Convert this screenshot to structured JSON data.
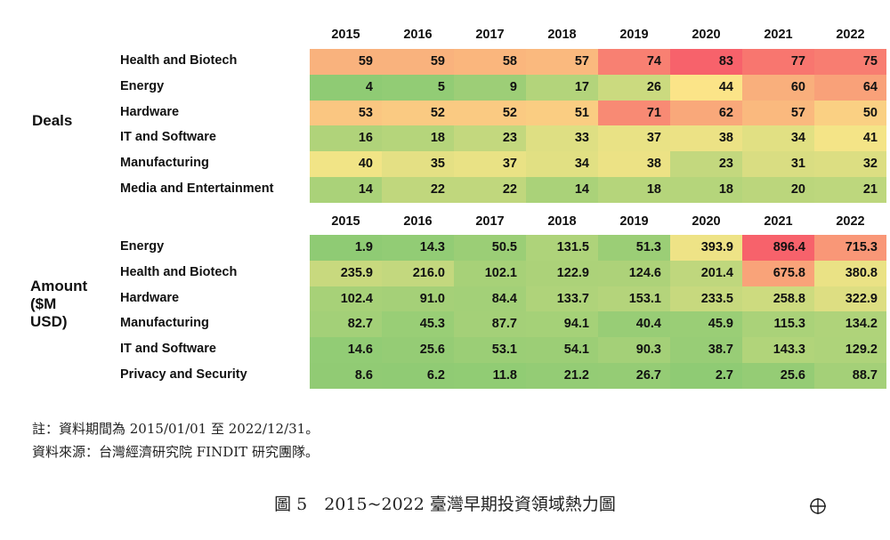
{
  "chart_data": [
    {
      "type": "heatmap",
      "section_label": "Deals",
      "years": [
        "2015",
        "2016",
        "2017",
        "2018",
        "2019",
        "2020",
        "2021",
        "2022"
      ],
      "rows": [
        {
          "label": "Health and Biotech",
          "values": [
            59,
            59,
            58,
            57,
            74,
            83,
            77,
            75
          ]
        },
        {
          "label": "Energy",
          "values": [
            4,
            5,
            9,
            17,
            26,
            44,
            60,
            64
          ]
        },
        {
          "label": "Hardware",
          "values": [
            53,
            52,
            52,
            51,
            71,
            62,
            57,
            50
          ]
        },
        {
          "label": "IT and Software",
          "values": [
            16,
            18,
            23,
            33,
            37,
            38,
            34,
            41
          ]
        },
        {
          "label": "Manufacturing",
          "values": [
            40,
            35,
            37,
            34,
            38,
            23,
            31,
            32
          ]
        },
        {
          "label": "Media and Entertainment",
          "values": [
            14,
            22,
            22,
            14,
            18,
            18,
            20,
            21
          ]
        }
      ],
      "color_scale": {
        "low": "#8fcb74",
        "mid": "#fbe688",
        "high": "#f7626b"
      }
    },
    {
      "type": "heatmap",
      "section_label": "Amount\n($M USD)",
      "years": [
        "2015",
        "2016",
        "2017",
        "2018",
        "2019",
        "2020",
        "2021",
        "2022"
      ],
      "rows": [
        {
          "label": "Energy",
          "values": [
            "1.9",
            "14.3",
            "50.5",
            "131.5",
            "51.3",
            "393.9",
            "896.4",
            "715.3"
          ]
        },
        {
          "label": "Health and Biotech",
          "values": [
            "235.9",
            "216.0",
            "102.1",
            "122.9",
            "124.6",
            "201.4",
            "675.8",
            "380.8"
          ]
        },
        {
          "label": "Hardware",
          "values": [
            "102.4",
            "91.0",
            "84.4",
            "133.7",
            "153.1",
            "233.5",
            "258.8",
            "322.9"
          ]
        },
        {
          "label": "Manufacturing",
          "values": [
            "82.7",
            "45.3",
            "87.7",
            "94.1",
            "40.4",
            "45.9",
            "115.3",
            "134.2"
          ]
        },
        {
          "label": "IT and Software",
          "values": [
            "14.6",
            "25.6",
            "53.1",
            "54.1",
            "90.3",
            "38.7",
            "143.3",
            "129.2"
          ]
        },
        {
          "label": "Privacy and Security",
          "values": [
            "8.6",
            "6.2",
            "11.8",
            "21.2",
            "26.7",
            "2.7",
            "25.6",
            "88.7"
          ]
        }
      ],
      "color_scale": {
        "low": "#8fcb74",
        "mid": "#fbe688",
        "high": "#f7626b"
      }
    }
  ],
  "notes": {
    "line1": "註：資料期間為 2015/01/01 至 2022/12/31。",
    "line2": "資料來源：台灣經濟研究院 FINDIT 研究團隊。"
  },
  "caption": "圖 5　2015~2022 臺灣早期投資領域熱力圖",
  "icons": {
    "corner": "crosshair-circle-icon"
  }
}
